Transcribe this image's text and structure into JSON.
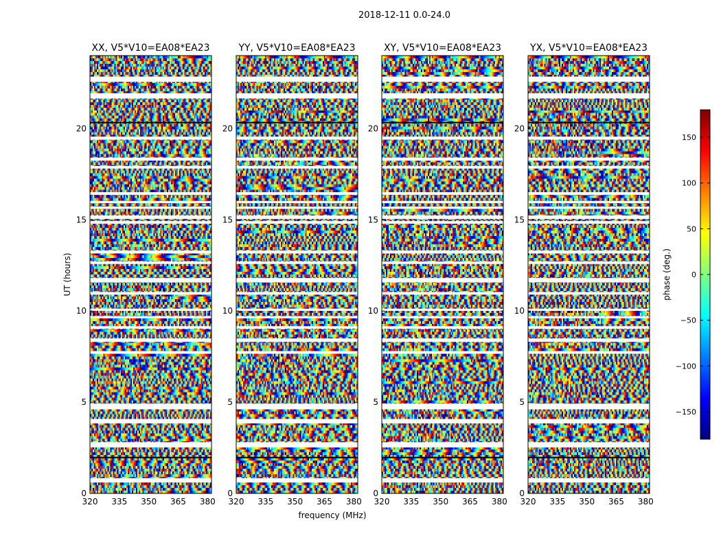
{
  "figure_title": "2018-12-11 0.0-24.0",
  "chart_data": [
    {
      "type": "heatmap",
      "title": "XX, V5*V10=EA08*EA23",
      "xlabel": "",
      "ylabel": "UT (hours)",
      "xlim": [
        320,
        382
      ],
      "ylim": [
        0,
        24
      ],
      "x_ticks": [
        320,
        335,
        350,
        365,
        380
      ],
      "y_ticks": [
        0,
        5,
        10,
        15,
        20
      ]
    },
    {
      "type": "heatmap",
      "title": "YY, V5*V10=EA08*EA23",
      "xlabel": "frequency (MHz)",
      "ylabel": "",
      "xlim": [
        320,
        382
      ],
      "ylim": [
        0,
        24
      ],
      "x_ticks": [
        320,
        335,
        350,
        365,
        380
      ],
      "y_ticks": [
        0,
        5,
        10,
        15,
        20
      ]
    },
    {
      "type": "heatmap",
      "title": "XY, V5*V10=EA08*EA23",
      "xlabel": "",
      "ylabel": "",
      "xlim": [
        320,
        382
      ],
      "ylim": [
        0,
        24
      ],
      "x_ticks": [
        320,
        335,
        350,
        365,
        380
      ],
      "y_ticks": [
        0,
        5,
        10,
        15,
        20
      ]
    },
    {
      "type": "heatmap",
      "title": "YX, V5*V10=EA08*EA23",
      "xlabel": "",
      "ylabel": "",
      "xlim": [
        320,
        382
      ],
      "ylim": [
        0,
        24
      ],
      "x_ticks": [
        320,
        335,
        350,
        365,
        380
      ],
      "y_ticks": [
        0,
        5,
        10,
        15,
        20
      ]
    }
  ],
  "colorbar": {
    "label": "phase (deg.)",
    "range": [
      -180,
      180
    ],
    "ticks": [
      -150,
      -100,
      -50,
      0,
      50,
      100,
      150
    ],
    "tick_labels": [
      "−150",
      "−100",
      "−50",
      "0",
      "50",
      "100",
      "150"
    ],
    "colormap": "jet"
  },
  "colors": {
    "jet_stops": [
      "#00007f",
      "#0000ff",
      "#007fff",
      "#00ffff",
      "#7fff7f",
      "#ffff00",
      "#ff7f00",
      "#ff0000",
      "#7f0000"
    ],
    "axis": "#000000",
    "background": "#ffffff"
  }
}
